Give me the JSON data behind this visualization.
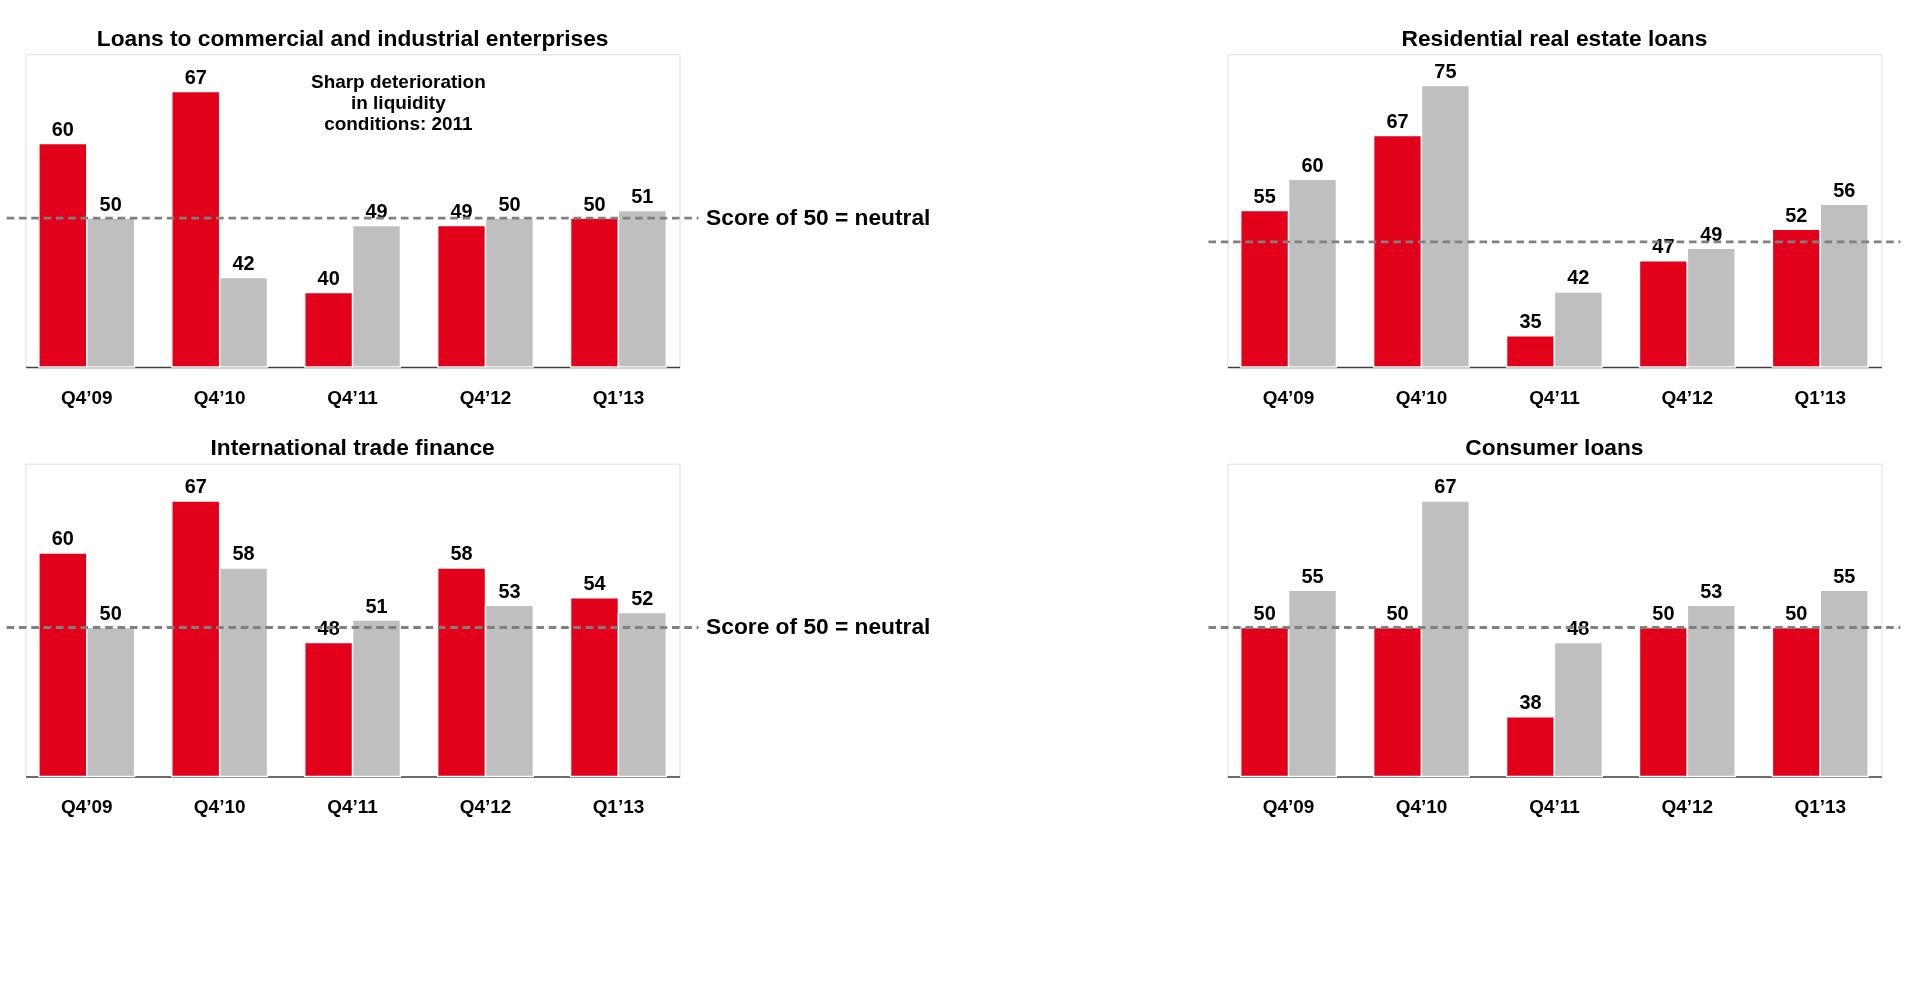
{
  "chart_data": [
    {
      "type": "bar",
      "title": "Loans to commercial and industrial enterprises",
      "categories": [
        "Q4’09",
        "Q4’10",
        "Q4’11",
        "Q4’12",
        "Q1’13"
      ],
      "series": [
        {
          "color": "#e2001a",
          "values": [
            60,
            67,
            40,
            49,
            50
          ]
        },
        {
          "color": "#bfbfbf",
          "values": [
            50,
            42,
            49,
            50,
            51
          ]
        }
      ],
      "ylim": [
        30,
        72
      ],
      "data_labels": true,
      "grid": false,
      "legend": false,
      "ref_lines": [
        {
          "axis": "y",
          "value": 50,
          "label": "Score of 50 = neutral",
          "color": "#808080",
          "line_style": "dashed"
        }
      ],
      "annotations": [
        "Sharp deterioration\nin liquidity\nconditions: 2011"
      ]
    },
    {
      "type": "bar",
      "title": "Residential real estate loans",
      "categories": [
        "Q4’09",
        "Q4’10",
        "Q4’11",
        "Q4’12",
        "Q1’13"
      ],
      "series": [
        {
          "color": "#e2001a",
          "values": [
            55,
            67,
            35,
            47,
            52
          ]
        },
        {
          "color": "#bfbfbf",
          "values": [
            60,
            75,
            42,
            49,
            56
          ]
        }
      ],
      "ylim": [
        30,
        80
      ],
      "data_labels": true,
      "grid": false,
      "legend": false,
      "ref_lines": [
        {
          "axis": "y",
          "value": 50,
          "color": "#808080",
          "line_style": "dashed"
        }
      ]
    },
    {
      "type": "bar",
      "title": "International trade finance",
      "categories": [
        "Q4’09",
        "Q4’10",
        "Q4’11",
        "Q4’12",
        "Q1’13"
      ],
      "series": [
        {
          "color": "#e2001a",
          "values": [
            60,
            67,
            48,
            58,
            54
          ]
        },
        {
          "color": "#bfbfbf",
          "values": [
            50,
            58,
            51,
            53,
            52
          ]
        }
      ],
      "ylim": [
        30,
        72
      ],
      "data_labels": true,
      "grid": false,
      "legend": false,
      "ref_lines": [
        {
          "axis": "y",
          "value": 50,
          "label": "Score of 50 = neutral",
          "color": "#808080",
          "line_style": "dashed"
        }
      ]
    },
    {
      "type": "bar",
      "title": "Consumer loans",
      "categories": [
        "Q4’09",
        "Q4’10",
        "Q4’11",
        "Q4’12",
        "Q1’13"
      ],
      "series": [
        {
          "color": "#e2001a",
          "values": [
            50,
            50,
            38,
            50,
            50
          ]
        },
        {
          "color": "#bfbfbf",
          "values": [
            55,
            67,
            48,
            53,
            55
          ]
        }
      ],
      "ylim": [
        30,
        72
      ],
      "data_labels": true,
      "grid": false,
      "legend": false,
      "ref_lines": [
        {
          "axis": "y",
          "value": 50,
          "color": "#808080",
          "line_style": "dashed"
        }
      ]
    }
  ]
}
